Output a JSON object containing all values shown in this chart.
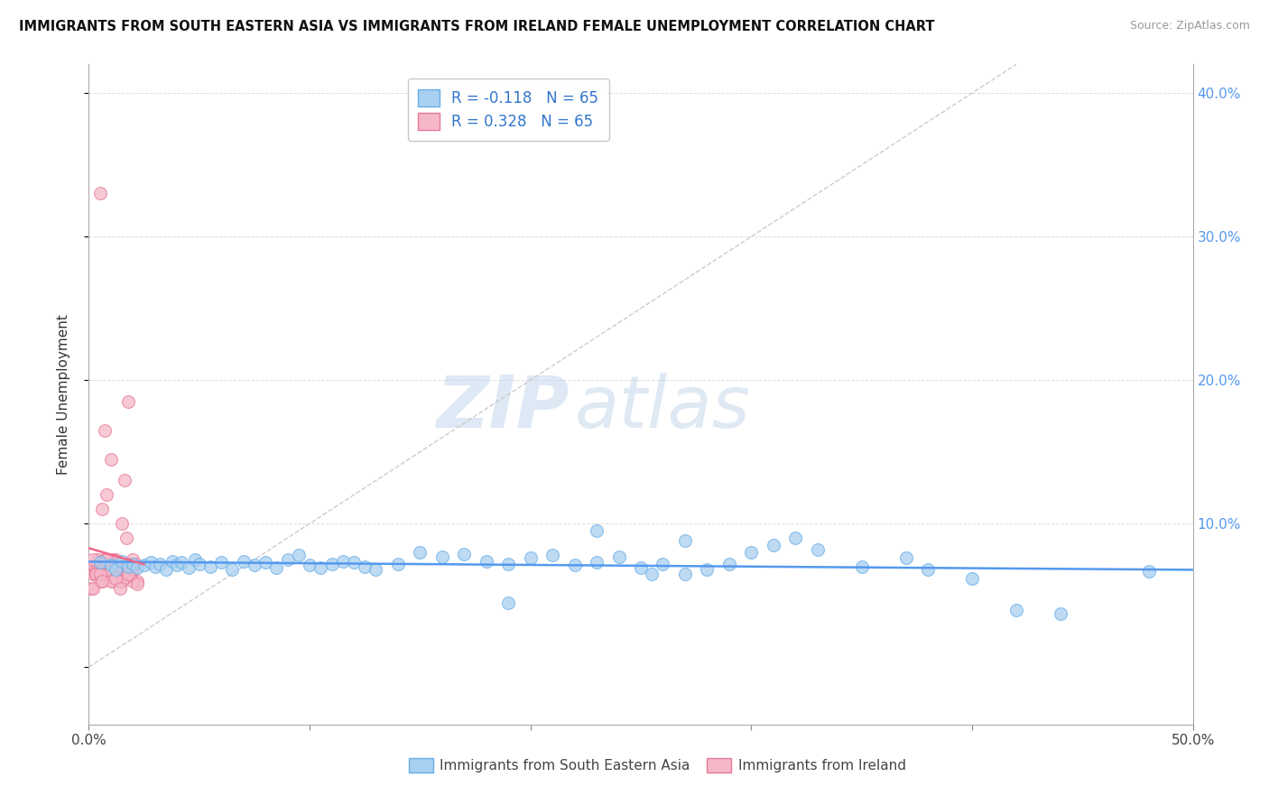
{
  "title": "IMMIGRANTS FROM SOUTH EASTERN ASIA VS IMMIGRANTS FROM IRELAND FEMALE UNEMPLOYMENT CORRELATION CHART",
  "source": "Source: ZipAtlas.com",
  "xlabel_blue": "Immigrants from South Eastern Asia",
  "xlabel_pink": "Immigrants from Ireland",
  "ylabel": "Female Unemployment",
  "xlim": [
    0.0,
    0.5
  ],
  "ylim": [
    -0.04,
    0.42
  ],
  "yticks": [
    0.0,
    0.1,
    0.2,
    0.3,
    0.4
  ],
  "xticks": [
    0.0,
    0.1,
    0.2,
    0.3,
    0.4,
    0.5
  ],
  "xtick_labels": [
    "0.0%",
    "",
    "",
    "",
    "",
    "50.0%"
  ],
  "ytick_labels_right": [
    "",
    "10.0%",
    "20.0%",
    "30.0%",
    "40.0%"
  ],
  "blue_color": "#a8d0f0",
  "pink_color": "#f5b8c8",
  "blue_edge_color": "#6aaee8",
  "pink_edge_color": "#e87898",
  "blue_line_color": "#5599ee",
  "pink_line_color": "#ee6688",
  "diagonal_color": "#cccccc",
  "watermark_zip": "ZIP",
  "watermark_atlas": "atlas",
  "R_blue": -0.118,
  "N_blue": 65,
  "R_pink": 0.328,
  "N_pink": 65,
  "blue_scatter_x": [
    0.005,
    0.01,
    0.012,
    0.015,
    0.018,
    0.02,
    0.022,
    0.025,
    0.028,
    0.03,
    0.032,
    0.035,
    0.038,
    0.04,
    0.042,
    0.045,
    0.048,
    0.05,
    0.055,
    0.06,
    0.065,
    0.07,
    0.075,
    0.08,
    0.085,
    0.09,
    0.095,
    0.1,
    0.105,
    0.11,
    0.115,
    0.12,
    0.125,
    0.13,
    0.14,
    0.15,
    0.16,
    0.17,
    0.18,
    0.19,
    0.2,
    0.21,
    0.22,
    0.23,
    0.24,
    0.25,
    0.255,
    0.26,
    0.27,
    0.28,
    0.29,
    0.3,
    0.31,
    0.32,
    0.33,
    0.35,
    0.37,
    0.38,
    0.4,
    0.42,
    0.44,
    0.23,
    0.19,
    0.27,
    0.48
  ],
  "blue_scatter_y": [
    0.073,
    0.071,
    0.068,
    0.074,
    0.07,
    0.072,
    0.069,
    0.071,
    0.073,
    0.07,
    0.072,
    0.068,
    0.074,
    0.071,
    0.073,
    0.069,
    0.075,
    0.072,
    0.07,
    0.073,
    0.068,
    0.074,
    0.071,
    0.073,
    0.069,
    0.075,
    0.078,
    0.071,
    0.069,
    0.072,
    0.074,
    0.073,
    0.07,
    0.068,
    0.072,
    0.08,
    0.077,
    0.079,
    0.074,
    0.072,
    0.076,
    0.078,
    0.071,
    0.073,
    0.077,
    0.069,
    0.065,
    0.072,
    0.065,
    0.068,
    0.072,
    0.08,
    0.085,
    0.09,
    0.082,
    0.07,
    0.076,
    0.068,
    0.062,
    0.04,
    0.037,
    0.095,
    0.045,
    0.088,
    0.067
  ],
  "pink_scatter_x": [
    0.001,
    0.002,
    0.003,
    0.004,
    0.005,
    0.006,
    0.007,
    0.008,
    0.009,
    0.01,
    0.011,
    0.012,
    0.013,
    0.014,
    0.015,
    0.016,
    0.017,
    0.018,
    0.019,
    0.02,
    0.021,
    0.022,
    0.003,
    0.005,
    0.007,
    0.009,
    0.011,
    0.013,
    0.015,
    0.017,
    0.019,
    0.004,
    0.006,
    0.008,
    0.01,
    0.012,
    0.014,
    0.016,
    0.018,
    0.02,
    0.002,
    0.004,
    0.006,
    0.008,
    0.01,
    0.001,
    0.003,
    0.005,
    0.007,
    0.009,
    0.011,
    0.013,
    0.015,
    0.017,
    0.005,
    0.01,
    0.015,
    0.02,
    0.008,
    0.012,
    0.002,
    0.006,
    0.014,
    0.018,
    0.022
  ],
  "pink_scatter_y": [
    0.07,
    0.065,
    0.068,
    0.072,
    0.33,
    0.065,
    0.075,
    0.12,
    0.068,
    0.145,
    0.072,
    0.075,
    0.065,
    0.06,
    0.1,
    0.13,
    0.09,
    0.185,
    0.068,
    0.075,
    0.072,
    0.06,
    0.065,
    0.07,
    0.165,
    0.068,
    0.075,
    0.063,
    0.06,
    0.068,
    0.065,
    0.075,
    0.11,
    0.072,
    0.068,
    0.065,
    0.06,
    0.068,
    0.072,
    0.06,
    0.075,
    0.065,
    0.06,
    0.065,
    0.068,
    0.055,
    0.065,
    0.06,
    0.075,
    0.065,
    0.06,
    0.065,
    0.068,
    0.063,
    0.065,
    0.06,
    0.06,
    0.068,
    0.075,
    0.062,
    0.055,
    0.06,
    0.055,
    0.065,
    0.058
  ]
}
